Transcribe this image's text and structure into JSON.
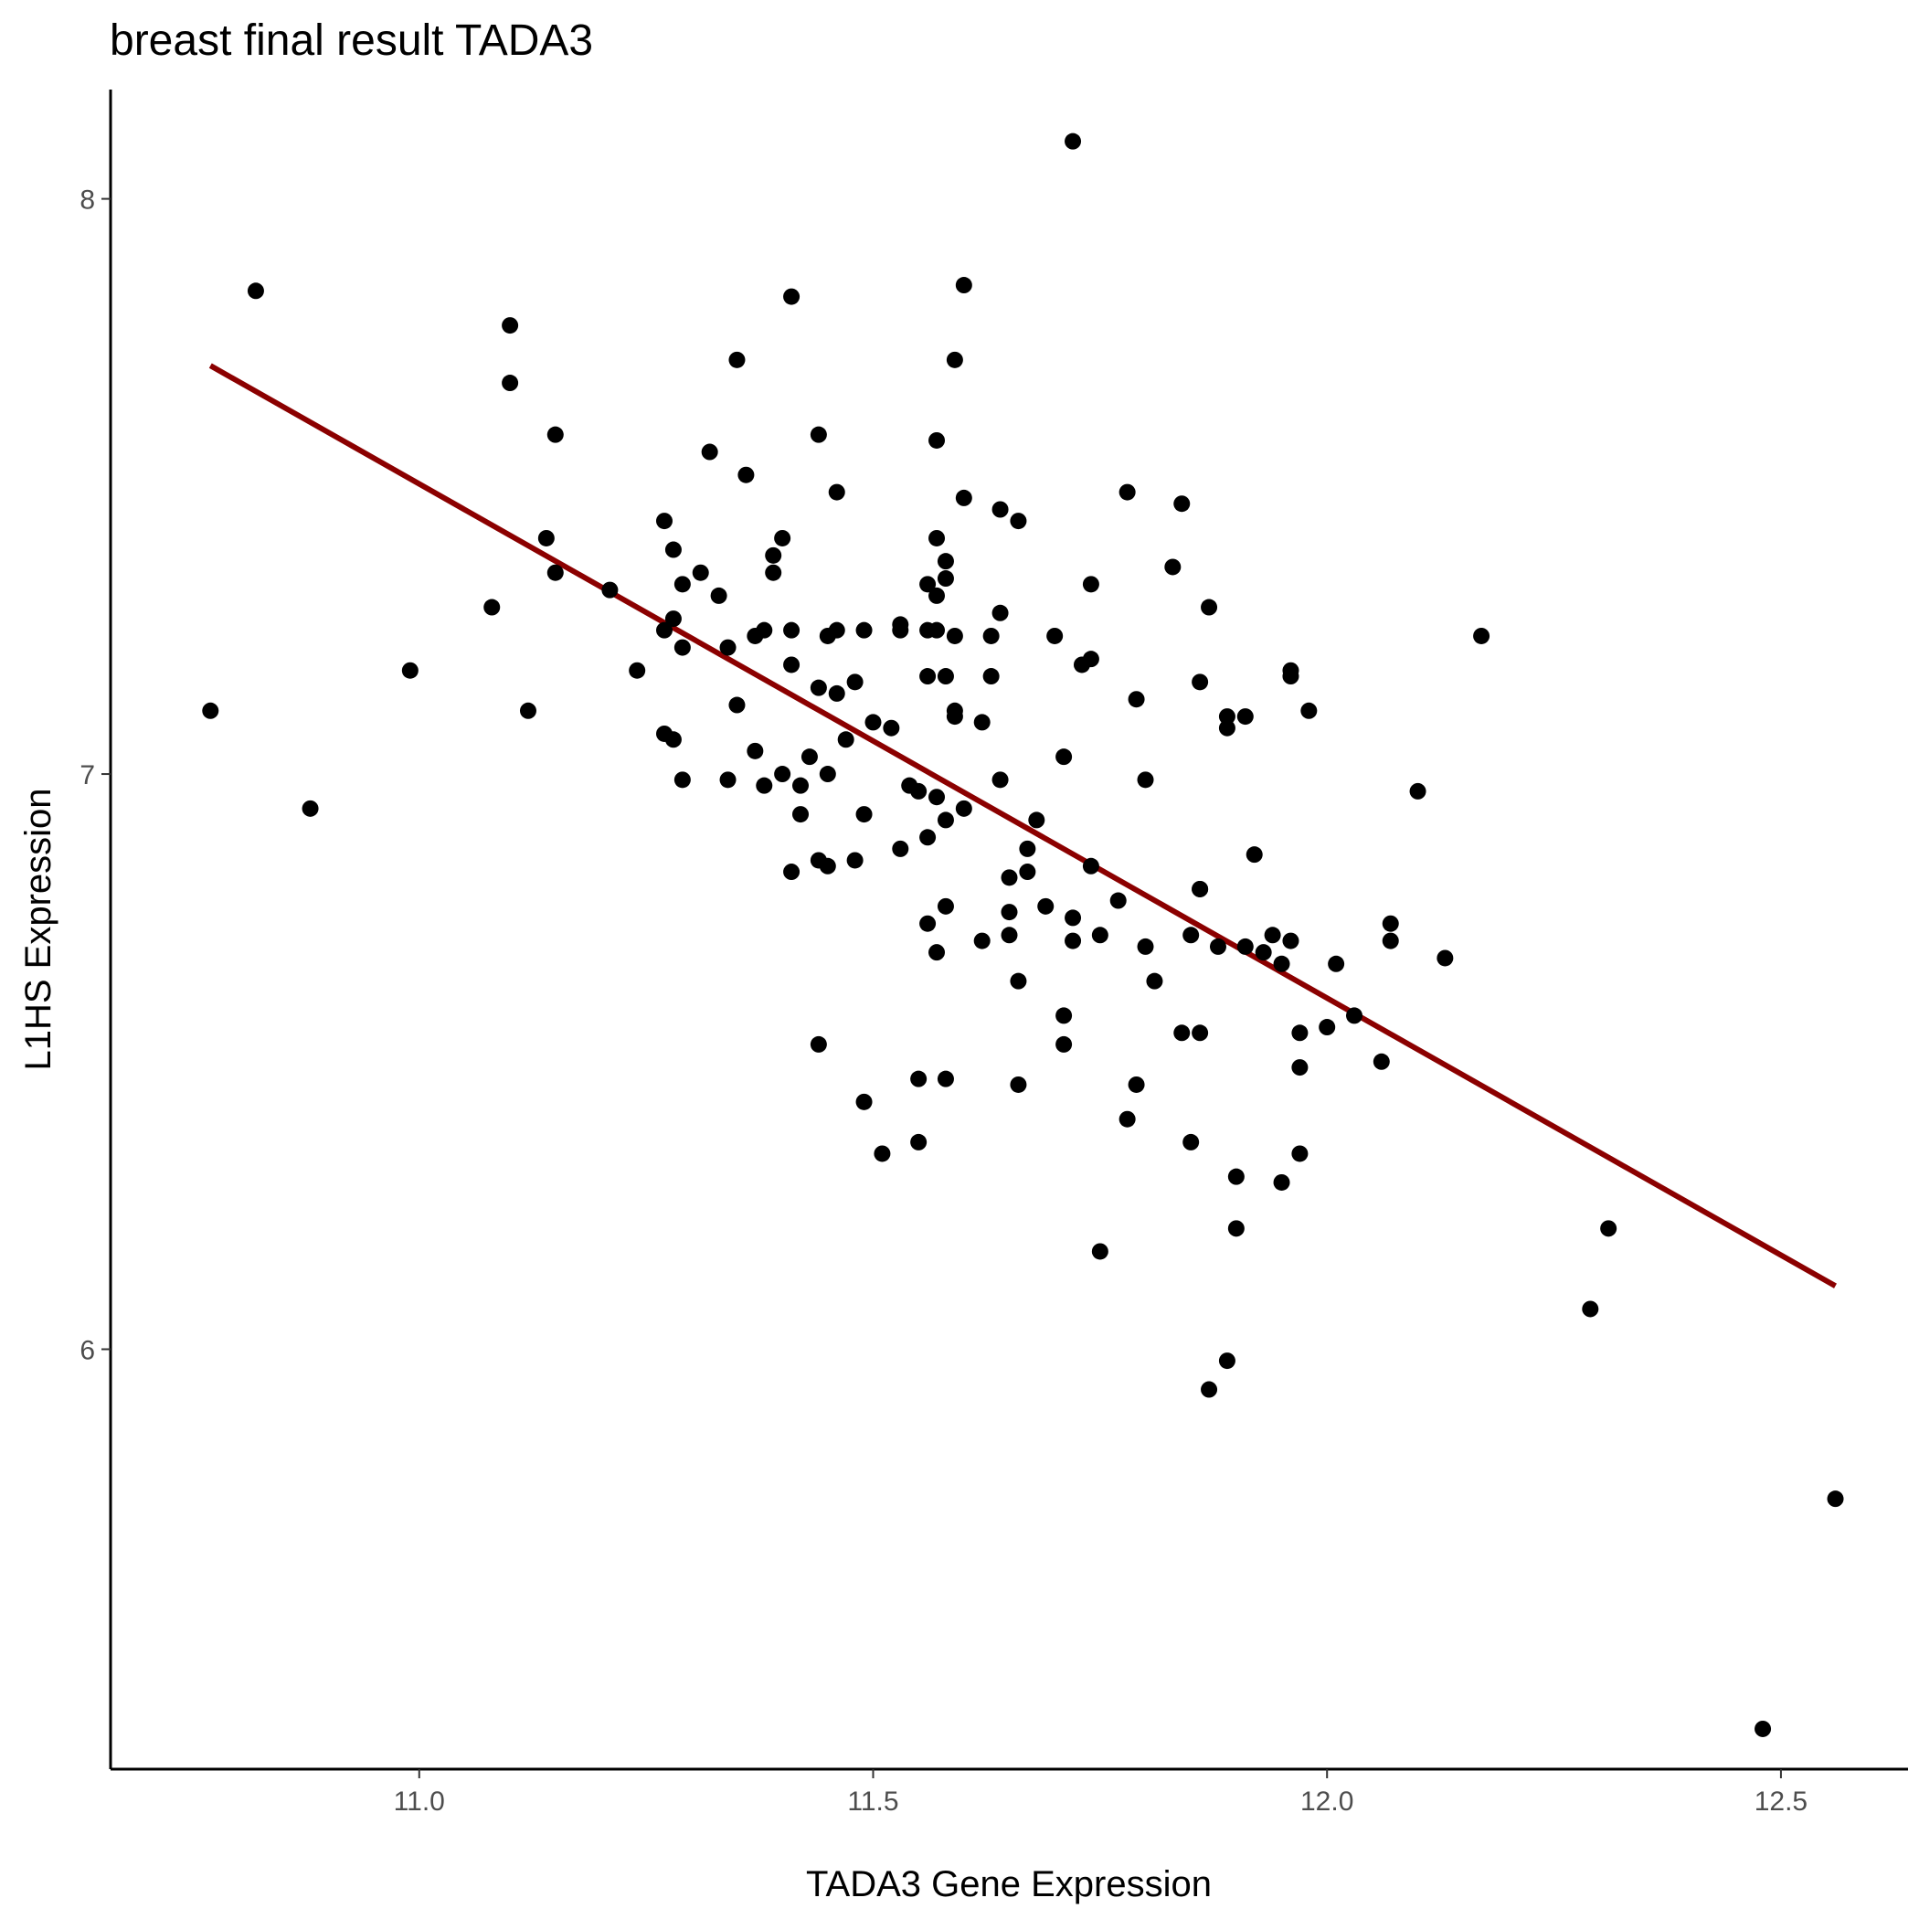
{
  "chart_data": {
    "type": "scatter",
    "title": "breast final result TADA3",
    "xlabel": "TADA3 Gene Expression",
    "ylabel": "L1HS Expression",
    "xlim": [
      10.66,
      12.64
    ],
    "ylim": [
      5.27,
      8.19
    ],
    "xticks": [
      11.0,
      11.5,
      12.0,
      12.5
    ],
    "xtick_labels": [
      "11.0",
      "11.5",
      "12.0",
      "12.5"
    ],
    "yticks": [
      6,
      7,
      8
    ],
    "ytick_labels": [
      "6",
      "7",
      "8"
    ],
    "grid": false,
    "point_color": "#000000",
    "fit_line": {
      "color": "#8b0000",
      "x": [
        10.77,
        12.56
      ],
      "y": [
        7.71,
        6.11
      ]
    },
    "points": [
      [
        10.82,
        7.84
      ],
      [
        11.1,
        7.78
      ],
      [
        11.1,
        7.68
      ],
      [
        11.15,
        7.59
      ],
      [
        11.14,
        7.41
      ],
      [
        11.15,
        7.35
      ],
      [
        11.08,
        7.29
      ],
      [
        10.77,
        7.11
      ],
      [
        10.99,
        7.18
      ],
      [
        11.12,
        7.11
      ],
      [
        10.88,
        6.94
      ],
      [
        11.21,
        7.32
      ],
      [
        11.24,
        7.18
      ],
      [
        11.27,
        7.25
      ],
      [
        11.27,
        7.44
      ],
      [
        11.28,
        7.39
      ],
      [
        11.28,
        7.27
      ],
      [
        11.29,
        7.33
      ],
      [
        11.31,
        7.35
      ],
      [
        11.33,
        7.31
      ],
      [
        11.27,
        7.07
      ],
      [
        11.28,
        7.06
      ],
      [
        11.29,
        7.22
      ],
      [
        11.29,
        6.99
      ],
      [
        11.32,
        7.56
      ],
      [
        11.34,
        7.22
      ],
      [
        11.35,
        7.12
      ],
      [
        11.34,
        6.99
      ],
      [
        11.35,
        7.72
      ],
      [
        11.36,
        7.52
      ],
      [
        11.37,
        7.04
      ],
      [
        11.37,
        7.24
      ],
      [
        11.38,
        7.25
      ],
      [
        11.38,
        6.98
      ],
      [
        11.39,
        7.38
      ],
      [
        11.39,
        7.35
      ],
      [
        11.4,
        7.41
      ],
      [
        11.4,
        7.0
      ],
      [
        11.41,
        7.83
      ],
      [
        11.41,
        7.19
      ],
      [
        11.41,
        7.25
      ],
      [
        11.41,
        6.83
      ],
      [
        11.42,
        6.93
      ],
      [
        11.42,
        6.98
      ],
      [
        11.43,
        7.03
      ],
      [
        11.44,
        7.59
      ],
      [
        11.44,
        7.15
      ],
      [
        11.44,
        6.85
      ],
      [
        11.44,
        6.53
      ],
      [
        11.45,
        7.24
      ],
      [
        11.45,
        7.0
      ],
      [
        11.45,
        6.84
      ],
      [
        11.46,
        7.25
      ],
      [
        11.46,
        7.14
      ],
      [
        11.46,
        7.49
      ],
      [
        11.47,
        7.06
      ],
      [
        11.48,
        7.16
      ],
      [
        11.48,
        6.85
      ],
      [
        11.49,
        6.93
      ],
      [
        11.49,
        7.25
      ],
      [
        11.49,
        6.43
      ],
      [
        11.5,
        7.09
      ],
      [
        11.51,
        6.34
      ],
      [
        11.52,
        7.08
      ],
      [
        11.53,
        7.26
      ],
      [
        11.53,
        7.25
      ],
      [
        11.53,
        6.87
      ],
      [
        11.54,
        6.98
      ],
      [
        11.55,
        6.47
      ],
      [
        11.55,
        6.36
      ],
      [
        11.55,
        6.97
      ],
      [
        11.56,
        7.25
      ],
      [
        11.56,
        7.17
      ],
      [
        11.56,
        7.33
      ],
      [
        11.56,
        6.89
      ],
      [
        11.56,
        6.74
      ],
      [
        11.57,
        7.25
      ],
      [
        11.57,
        7.31
      ],
      [
        11.57,
        7.41
      ],
      [
        11.57,
        6.96
      ],
      [
        11.57,
        6.69
      ],
      [
        11.57,
        7.58
      ],
      [
        11.58,
        7.37
      ],
      [
        11.58,
        7.34
      ],
      [
        11.58,
        7.17
      ],
      [
        11.58,
        6.92
      ],
      [
        11.58,
        6.77
      ],
      [
        11.58,
        6.47
      ],
      [
        11.59,
        7.24
      ],
      [
        11.59,
        7.1
      ],
      [
        11.59,
        7.72
      ],
      [
        11.59,
        7.11
      ],
      [
        11.6,
        7.48
      ],
      [
        11.6,
        6.94
      ],
      [
        11.6,
        7.85
      ],
      [
        11.62,
        6.71
      ],
      [
        11.62,
        7.09
      ],
      [
        11.63,
        7.17
      ],
      [
        11.63,
        7.24
      ],
      [
        11.64,
        7.46
      ],
      [
        11.64,
        6.99
      ],
      [
        11.64,
        7.28
      ],
      [
        11.65,
        6.82
      ],
      [
        11.65,
        6.72
      ],
      [
        11.65,
        6.76
      ],
      [
        11.66,
        6.64
      ],
      [
        11.66,
        7.44
      ],
      [
        11.66,
        6.46
      ],
      [
        11.67,
        6.83
      ],
      [
        11.67,
        6.87
      ],
      [
        11.68,
        6.92
      ],
      [
        11.69,
        6.77
      ],
      [
        11.7,
        7.24
      ],
      [
        11.71,
        7.03
      ],
      [
        11.71,
        6.53
      ],
      [
        11.71,
        6.58
      ],
      [
        11.72,
        6.75
      ],
      [
        11.72,
        6.71
      ],
      [
        11.72,
        8.1
      ],
      [
        11.73,
        7.19
      ],
      [
        11.74,
        7.33
      ],
      [
        11.74,
        7.2
      ],
      [
        11.74,
        6.84
      ],
      [
        11.75,
        6.17
      ],
      [
        11.75,
        6.72
      ],
      [
        11.77,
        6.78
      ],
      [
        11.78,
        6.4
      ],
      [
        11.78,
        7.49
      ],
      [
        11.79,
        7.13
      ],
      [
        11.79,
        6.46
      ],
      [
        11.8,
        6.99
      ],
      [
        11.8,
        6.7
      ],
      [
        11.81,
        6.64
      ],
      [
        11.83,
        7.36
      ],
      [
        11.84,
        7.47
      ],
      [
        11.84,
        6.55
      ],
      [
        11.85,
        6.36
      ],
      [
        11.85,
        6.72
      ],
      [
        11.86,
        6.8
      ],
      [
        11.86,
        6.8
      ],
      [
        11.86,
        6.55
      ],
      [
        11.86,
        7.16
      ],
      [
        11.87,
        7.29
      ],
      [
        11.87,
        5.93
      ],
      [
        11.88,
        6.7
      ],
      [
        11.89,
        7.08
      ],
      [
        11.89,
        7.1
      ],
      [
        11.89,
        5.98
      ],
      [
        11.9,
        6.3
      ],
      [
        11.9,
        6.21
      ],
      [
        11.91,
        7.1
      ],
      [
        11.91,
        6.7
      ],
      [
        11.92,
        6.86
      ],
      [
        11.93,
        6.69
      ],
      [
        11.94,
        6.72
      ],
      [
        11.95,
        6.67
      ],
      [
        11.95,
        6.29
      ],
      [
        11.96,
        6.71
      ],
      [
        11.96,
        7.18
      ],
      [
        11.96,
        7.17
      ],
      [
        11.97,
        6.55
      ],
      [
        11.97,
        6.49
      ],
      [
        11.97,
        6.34
      ],
      [
        11.98,
        7.11
      ],
      [
        12.0,
        6.56
      ],
      [
        12.01,
        6.67
      ],
      [
        12.03,
        6.58
      ],
      [
        12.06,
        6.5
      ],
      [
        12.07,
        6.74
      ],
      [
        12.07,
        6.71
      ],
      [
        12.1,
        6.97
      ],
      [
        12.13,
        6.68
      ],
      [
        12.17,
        7.24
      ],
      [
        12.31,
        6.21
      ],
      [
        12.29,
        6.07
      ],
      [
        12.48,
        5.34
      ],
      [
        12.56,
        5.74
      ]
    ]
  }
}
